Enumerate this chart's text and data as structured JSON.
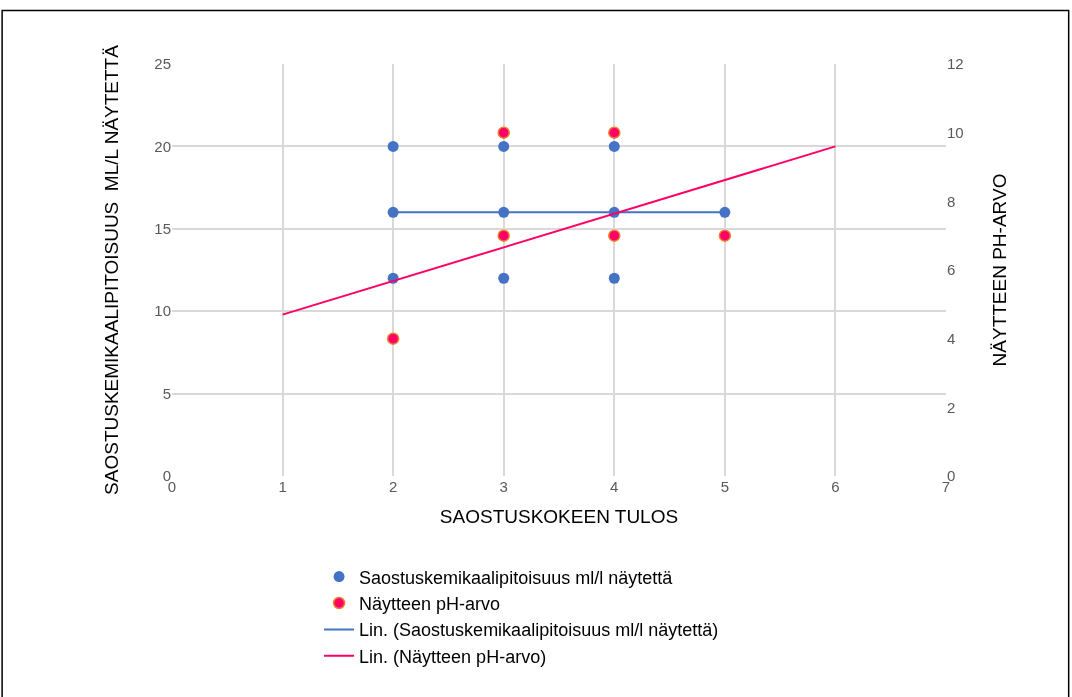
{
  "chart_data": {
    "type": "scatter",
    "xlabel": "SAOSTUSKOKEEN TULOS",
    "ylabel": "SAOSTUSKEMIKAALIPITOISUUS  ML/L NÄYTETTÄ",
    "y2label": "NÄYTTEEN PH-ARVO",
    "series": [
      {
        "name": "Saostuskemikaalipitoisuus ml/l näytettä",
        "marker": "circle",
        "color": "#4472c4",
        "x": [
          2,
          2,
          2,
          3,
          3,
          3,
          4,
          4,
          4,
          5
        ],
        "values": [
          20,
          16,
          12,
          20,
          16,
          12,
          20,
          16,
          12,
          16
        ]
      },
      {
        "name": "Näytteen pH-arvo",
        "marker": "circle",
        "axis": "y2",
        "color": "#ff0066",
        "x": [
          2,
          3,
          3,
          4,
          4,
          5
        ],
        "values": [
          4,
          10,
          7,
          10,
          7,
          7
        ]
      },
      {
        "name": "Lin. (Saostuskemikaalipitoisuus ml/l näytettä)",
        "type": "line",
        "marker": "none",
        "color": "#4472c4",
        "x": [
          2,
          5
        ],
        "values": [
          16,
          16
        ]
      },
      {
        "name": "Lin. (Näytteen pH-arvo)",
        "type": "line",
        "marker": "none",
        "axis": "y2",
        "color": "#ff0066",
        "x": [
          1,
          6
        ],
        "values": [
          4.7,
          9.6
        ]
      }
    ],
    "xlim": [
      0,
      7
    ],
    "xticks": [
      0,
      1,
      2,
      3,
      4,
      5,
      6,
      7
    ],
    "ylim": [
      0,
      25
    ],
    "yticks": [
      0,
      5,
      10,
      15,
      20,
      25
    ],
    "y2lim": [
      0,
      12
    ],
    "y2ticks": [
      0,
      2,
      4,
      6,
      8,
      10,
      12
    ],
    "grid": true,
    "legend": "bottom",
    "line_style": "solid"
  }
}
